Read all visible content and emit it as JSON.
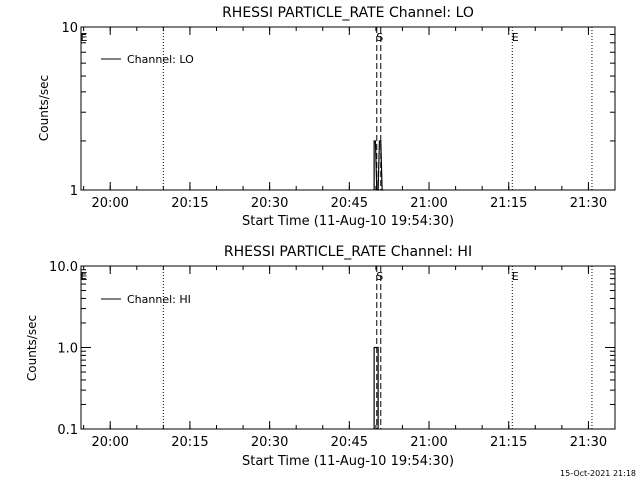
{
  "timestamp": "15-Oct-2021 21:18",
  "chart_data": [
    {
      "type": "line",
      "title": "RHESSI PARTICLE_RATE Channel: LO",
      "xlabel": "Start Time (11-Aug-10 19:54:30)",
      "ylabel": "Counts/sec",
      "y_scale": "log",
      "ylim": [
        1,
        10
      ],
      "y_ticks": [
        "1",
        "10"
      ],
      "xlim": [
        "19:54:30",
        "21:35:00"
      ],
      "x_ticks": [
        "20:00",
        "20:15",
        "20:30",
        "20:45",
        "21:00",
        "21:15",
        "21:30"
      ],
      "legend": {
        "placement": "top-left",
        "entries": [
          "Channel: LO"
        ]
      },
      "grid": false,
      "markers": [
        {
          "label": "E",
          "time": "19:54:30",
          "style": "none"
        },
        {
          "label": "",
          "time": "20:10:00",
          "style": "dotted"
        },
        {
          "label": "S",
          "time": "20:50:10",
          "style": "dashed"
        },
        {
          "label": "",
          "time": "20:50:55",
          "style": "dashed"
        },
        {
          "label": "E",
          "time": "21:15:40",
          "style": "dotted"
        },
        {
          "label": "",
          "time": "21:30:40",
          "style": "dotted"
        }
      ],
      "series": [
        {
          "name": "Channel: LO",
          "x": [
            "20:49:40",
            "20:50:10",
            "20:50:40",
            "20:51:10"
          ],
          "y": [
            2,
            1,
            2,
            1
          ]
        }
      ]
    },
    {
      "type": "line",
      "title": "RHESSI PARTICLE_RATE Channel: HI",
      "xlabel": "Start Time (11-Aug-10 19:54:30)",
      "ylabel": "Counts/sec",
      "y_scale": "log",
      "ylim": [
        0.1,
        10
      ],
      "y_ticks": [
        "0.1",
        "1.0",
        "10.0"
      ],
      "xlim": [
        "19:54:30",
        "21:35:00"
      ],
      "x_ticks": [
        "20:00",
        "20:15",
        "20:30",
        "20:45",
        "21:00",
        "21:15",
        "21:30"
      ],
      "legend": {
        "placement": "top-left",
        "entries": [
          "Channel: HI"
        ]
      },
      "grid": false,
      "markers": [
        {
          "label": "E",
          "time": "19:54:30",
          "style": "none"
        },
        {
          "label": "",
          "time": "20:10:00",
          "style": "dotted"
        },
        {
          "label": "S",
          "time": "20:50:10",
          "style": "dashed"
        },
        {
          "label": "",
          "time": "20:50:55",
          "style": "dashed"
        },
        {
          "label": "E",
          "time": "21:15:40",
          "style": "dotted"
        },
        {
          "label": "",
          "time": "21:30:40",
          "style": "dotted"
        }
      ],
      "series": [
        {
          "name": "Channel: HI",
          "x": [
            "20:49:40",
            "20:50:10"
          ],
          "y": [
            1,
            1
          ]
        }
      ]
    }
  ]
}
